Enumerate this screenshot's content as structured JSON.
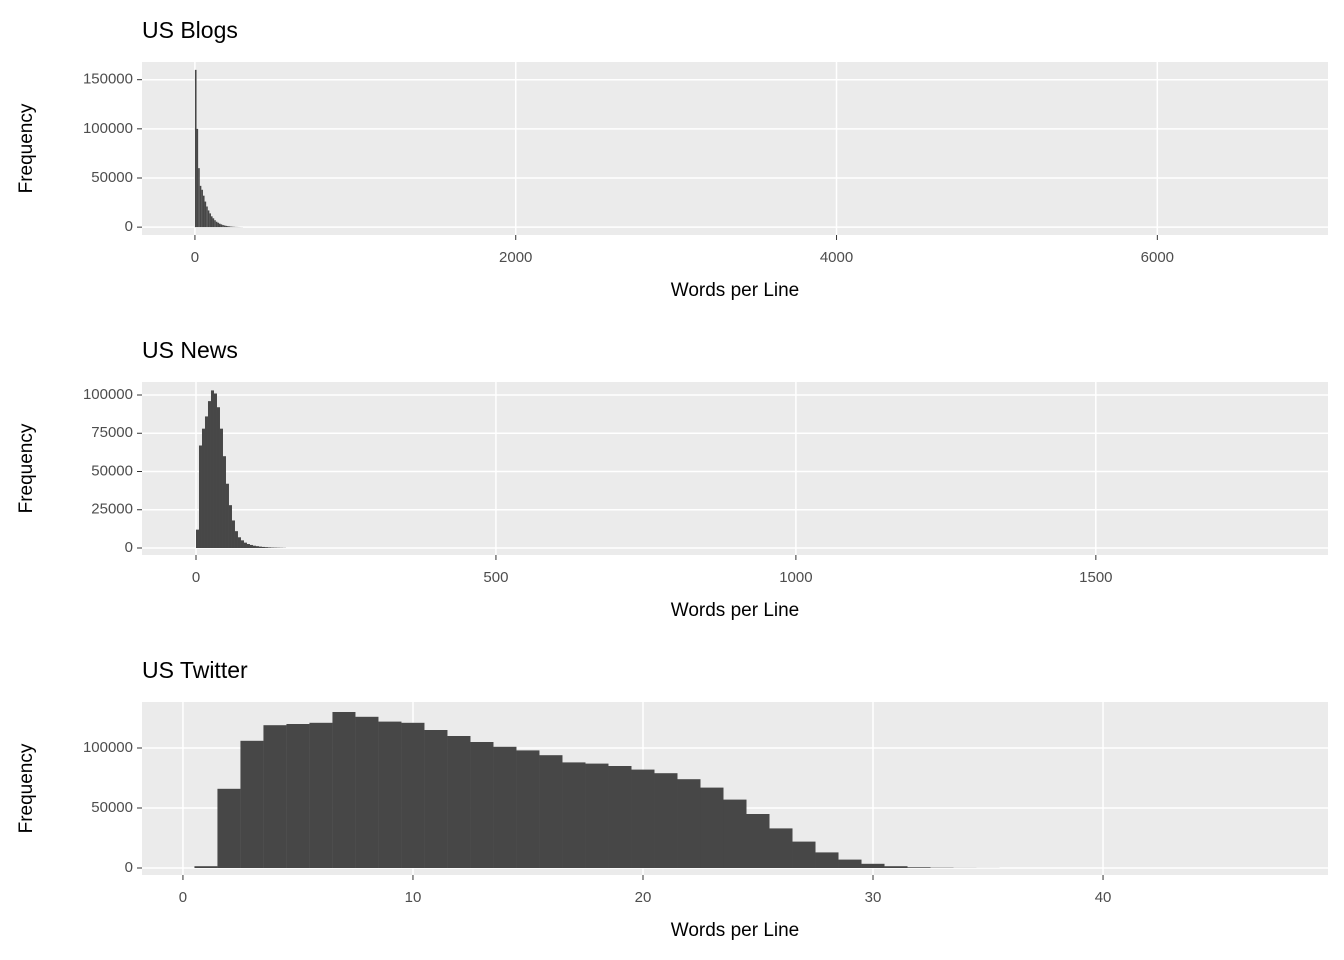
{
  "chart_data": [
    {
      "type": "histogram",
      "title": "US Blogs",
      "x_label": "Words per Line",
      "y_label": "Frequency",
      "color": "#474747",
      "grid": true,
      "bins": [
        0,
        10,
        20,
        30,
        40,
        50,
        60,
        70,
        80,
        90,
        100,
        110,
        120,
        130,
        140,
        150,
        160,
        170,
        180,
        190,
        200,
        210,
        220,
        230,
        240,
        250,
        260,
        270,
        280,
        290,
        300
      ],
      "counts": [
        160000,
        100000,
        60000,
        42000,
        38000,
        32000,
        26000,
        21000,
        17000,
        14000,
        11000,
        9000,
        7000,
        5500,
        4500,
        3500,
        2800,
        2200,
        1700,
        1300,
        1000,
        800,
        600,
        450,
        350,
        250,
        200,
        150,
        100,
        80
      ],
      "xlim": [
        -330,
        7064
      ],
      "xticks": [
        0,
        2000,
        4000,
        6000
      ],
      "ylim": [
        -8000,
        168000
      ],
      "yticks": [
        0,
        50000,
        100000,
        150000
      ]
    },
    {
      "type": "histogram",
      "title": "US News",
      "x_label": "Words per Line",
      "y_label": "Frequency",
      "color": "#474747",
      "grid": true,
      "bins": [
        0,
        5,
        10,
        15,
        20,
        25,
        30,
        35,
        40,
        45,
        50,
        55,
        60,
        65,
        70,
        75,
        80,
        85,
        90,
        95,
        100,
        105,
        110,
        115,
        120,
        125,
        130,
        135,
        140,
        145,
        150
      ],
      "counts": [
        12000,
        67000,
        78000,
        86000,
        96000,
        103000,
        101000,
        92000,
        78000,
        60000,
        42000,
        28000,
        18000,
        11000,
        7000,
        5000,
        3500,
        2600,
        2000,
        1500,
        1200,
        900,
        700,
        550,
        400,
        300,
        250,
        200,
        150,
        100
      ],
      "xlim": [
        -90,
        1887
      ],
      "xticks": [
        0,
        500,
        1000,
        1500
      ],
      "ylim": [
        -4575,
        108500
      ],
      "yticks": [
        0,
        25000,
        50000,
        75000,
        100000
      ]
    },
    {
      "type": "histogram",
      "title": "US Twitter",
      "x_label": "Words per Line",
      "y_label": "Frequency",
      "color": "#474747",
      "grid": true,
      "bins": [
        0.5,
        1.5,
        2.5,
        3.5,
        4.5,
        5.5,
        6.5,
        7.5,
        8.5,
        9.5,
        10.5,
        11.5,
        12.5,
        13.5,
        14.5,
        15.5,
        16.5,
        17.5,
        18.5,
        19.5,
        20.5,
        21.5,
        22.5,
        23.5,
        24.5,
        25.5,
        26.5,
        27.5,
        28.5,
        29.5,
        30.5,
        31.5,
        32.5,
        33.5,
        34.5,
        35.5
      ],
      "counts": [
        1500,
        66000,
        106000,
        119000,
        120000,
        121000,
        130000,
        126000,
        122000,
        121000,
        115000,
        110000,
        105000,
        101000,
        98000,
        94000,
        88000,
        87000,
        85000,
        82000,
        79000,
        74000,
        67000,
        57000,
        45000,
        33000,
        22000,
        13000,
        7000,
        3500,
        1500,
        600,
        250,
        100,
        50
      ],
      "xlim": [
        -1.78,
        49.78
      ],
      "xticks": [
        0,
        10,
        20,
        30,
        40
      ],
      "ylim": [
        -5833,
        138333
      ],
      "yticks": [
        0,
        50000,
        100000
      ]
    }
  ]
}
